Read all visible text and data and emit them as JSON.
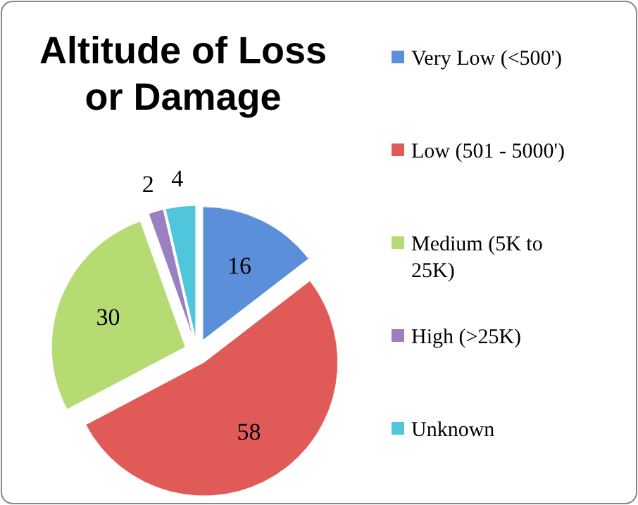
{
  "chart_data": {
    "type": "pie",
    "title": "Altitude of Loss or Damage",
    "categories": [
      "Very Low (<500')",
      "Low (501 - 5000')",
      "Medium (5K to 25K)",
      "High (>25K)",
      "Unknown"
    ],
    "values": [
      16,
      58,
      30,
      2,
      4
    ],
    "colors": [
      "#5b8fd9",
      "#e05a57",
      "#b5db72",
      "#9b7fc0",
      "#4fc6dc"
    ],
    "data_labels": true,
    "legend": "right"
  }
}
